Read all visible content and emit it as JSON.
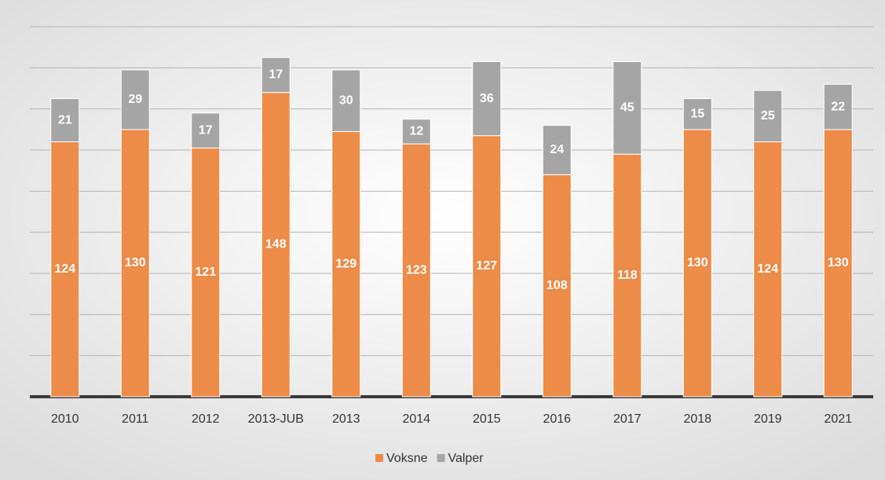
{
  "chart_data": {
    "type": "stacked_bar",
    "categories": [
      "2010",
      "2011",
      "2012",
      "2013-JUB",
      "2013",
      "2014",
      "2015",
      "2016",
      "2017",
      "2018",
      "2019",
      "2021"
    ],
    "series": [
      {
        "name": "Voksne",
        "color": "#ed8b48",
        "values": [
          124,
          130,
          121,
          148,
          129,
          123,
          127,
          108,
          118,
          130,
          124,
          130
        ]
      },
      {
        "name": "Valper",
        "color": "#a5a5a5",
        "values": [
          21,
          29,
          17,
          17,
          30,
          12,
          36,
          24,
          45,
          15,
          25,
          22
        ]
      }
    ],
    "ylim": [
      0,
      180
    ],
    "yticks": [
      0,
      20,
      40,
      60,
      80,
      100,
      120,
      140,
      160,
      180
    ],
    "grid": true,
    "legend": "bottom"
  }
}
